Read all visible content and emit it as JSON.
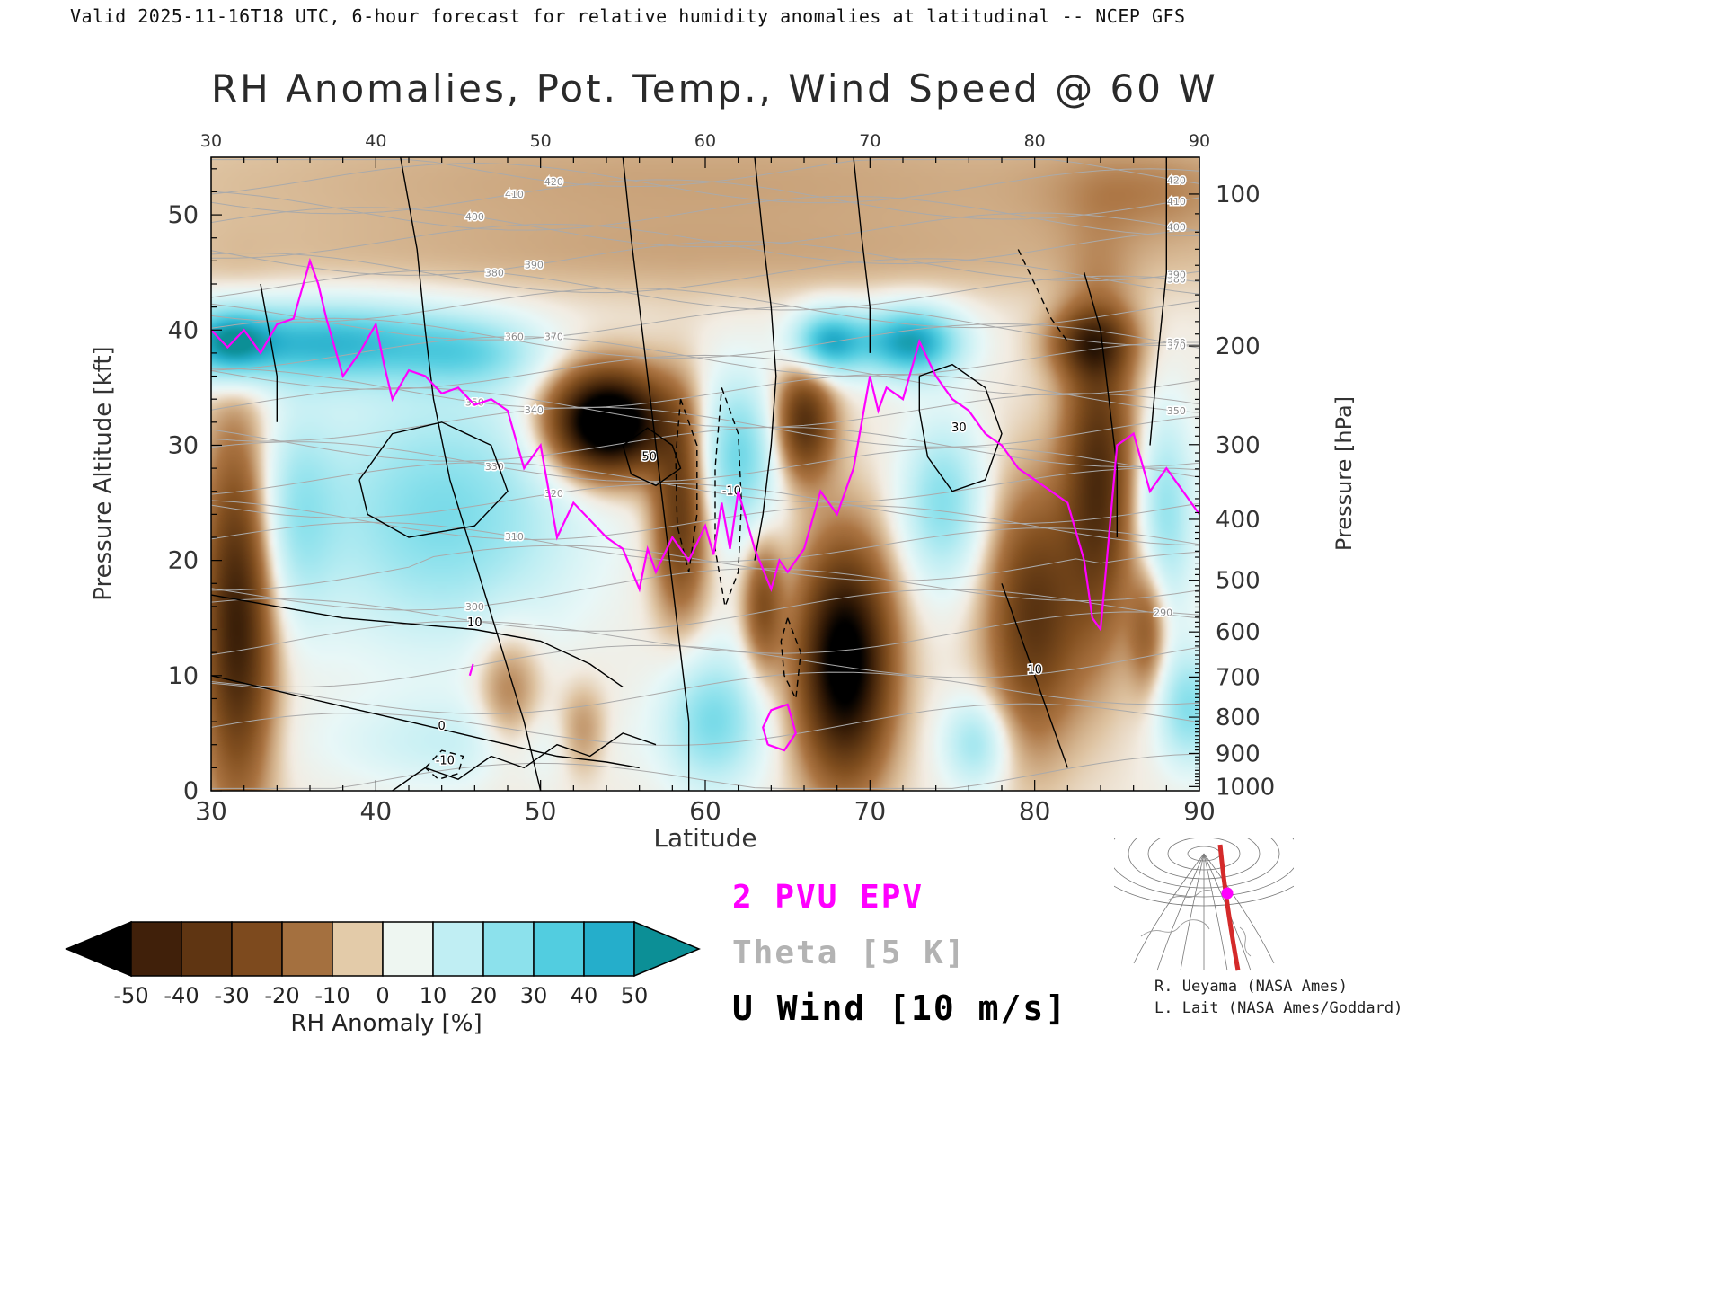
{
  "header": {
    "valid_line": "Valid 2025-11-16T18 UTC, 6-hour forecast for relative humidity anomalies at latitudinal -- NCEP GFS"
  },
  "title": "RH Anomalies, Pot. Temp., Wind Speed @ 60 W",
  "axes": {
    "x_label": "Latitude",
    "x_ticks": [
      30,
      40,
      50,
      60,
      70,
      80,
      90
    ],
    "x_minor_step": 2,
    "left_label": "Pressure Altitude [kft]",
    "left_ticks": [
      0,
      10,
      20,
      30,
      40,
      50
    ],
    "left_minor_step": 2,
    "right_label": "Pressure [hPa]",
    "right_ticks": [
      100,
      200,
      300,
      400,
      500,
      600,
      700,
      800,
      900,
      1000
    ]
  },
  "legend": {
    "pvu": "2 PVU EPV",
    "theta": "Theta [5 K]",
    "uwind": "U Wind [10 m/s]",
    "pvu_color": "#ff00ff",
    "theta_color": "#b3b3b3",
    "uwind_color": "#000000"
  },
  "colorbar": {
    "label": "RH Anomaly [%]",
    "ticks": [
      -50,
      -40,
      -30,
      -20,
      -10,
      0,
      10,
      20,
      30,
      40,
      50
    ],
    "bin_colors": [
      "#40200a",
      "#5f3512",
      "#7d4a1e",
      "#a4703f",
      "#e3cba9",
      "#eef6f1",
      "#c0eef3",
      "#8ce1ec",
      "#52cde0",
      "#25aecb"
    ],
    "left_arrow_color": "#000000",
    "right_arrow_color": "#0c8f96"
  },
  "credits": {
    "line1": "R. Ueyama (NASA Ames)",
    "line2": "L. Lait (NASA Ames/Goddard)"
  },
  "chart_data": {
    "type": "heatmap",
    "title": "RH Anomalies, Pot. Temp., Wind Speed @ 60 W",
    "x_name": "latitude_deg",
    "x_range": [
      30,
      90
    ],
    "y_name": "pressure_altitude_kft",
    "y_range": [
      0,
      55
    ],
    "y2_name": "pressure_hPa",
    "y2_range": [
      1000,
      100
    ],
    "fill_variable": "rh_anomaly_percent",
    "fill_levels": [
      -50,
      -40,
      -30,
      -20,
      -10,
      0,
      10,
      20,
      30,
      40,
      50
    ],
    "rh_anomaly_field": {
      "representation": "gaussian_blobs",
      "blob_format": [
        "lat_deg",
        "alt_kft",
        "radius_lat",
        "radius_kft",
        "amplitude_percent"
      ],
      "blobs": [
        [
          60,
          53,
          40,
          7,
          -9
        ],
        [
          60,
          46,
          40,
          3.5,
          -5
        ],
        [
          87,
          52,
          6,
          4,
          -8
        ],
        [
          31.5,
          15,
          2.2,
          16,
          -45
        ],
        [
          31,
          39,
          2.5,
          3,
          40
        ],
        [
          37,
          39,
          8,
          3.5,
          40
        ],
        [
          46,
          38,
          4,
          3,
          18
        ],
        [
          44,
          24,
          8,
          11,
          28
        ],
        [
          35,
          24,
          2.5,
          9,
          18
        ],
        [
          54,
          32,
          3.5,
          4.5,
          -75
        ],
        [
          48,
          8,
          2,
          6,
          -18
        ],
        [
          58.5,
          24,
          1.7,
          9,
          -35
        ],
        [
          60.5,
          6,
          3,
          6,
          28
        ],
        [
          62,
          29,
          2.5,
          7,
          30
        ],
        [
          66,
          32,
          1.8,
          5,
          -38
        ],
        [
          68.5,
          11,
          2.8,
          10,
          -62
        ],
        [
          67.5,
          39,
          2.2,
          2.8,
          45
        ],
        [
          72.5,
          39,
          3,
          3,
          50
        ],
        [
          74.5,
          25,
          2.5,
          7,
          26
        ],
        [
          76.5,
          4,
          2,
          4,
          22
        ],
        [
          80,
          15,
          2.8,
          11,
          -35
        ],
        [
          84,
          27,
          2.2,
          14,
          -38
        ],
        [
          83.5,
          39,
          2.5,
          3,
          -30
        ],
        [
          88,
          24,
          1.8,
          9,
          24
        ],
        [
          89.5,
          7,
          2,
          5,
          26
        ],
        [
          87,
          14,
          1.2,
          6,
          -22
        ],
        [
          45,
          4,
          8,
          4,
          12
        ],
        [
          63.5,
          16,
          1.2,
          6,
          -25
        ],
        [
          52.5,
          5,
          1.5,
          4,
          -15
        ]
      ]
    },
    "theta_contours": {
      "interval_K": 5,
      "min_K": 270,
      "max_K": 420,
      "labeled_values": [
        300,
        310,
        320,
        330,
        340,
        350,
        360,
        370,
        380,
        390,
        400,
        410,
        420
      ]
    },
    "u_wind_contours": {
      "interval_ms": 10,
      "lines": [
        {
          "pts": [
            [
              41.5,
              55
            ],
            [
              42.5,
              47
            ],
            [
              43,
              40
            ],
            [
              43.5,
              34
            ],
            [
              44.5,
              27
            ],
            [
              46,
              20
            ],
            [
              47.5,
              13
            ],
            [
              49,
              6
            ],
            [
              50,
              0
            ]
          ],
          "dash": false
        },
        {
          "pts": [
            [
              39,
              27
            ],
            [
              41,
              31
            ],
            [
              44,
              32
            ],
            [
              47,
              30
            ],
            [
              48,
              26
            ],
            [
              46,
              23
            ],
            [
              42,
              22
            ],
            [
              39.5,
              24
            ],
            [
              39,
              27
            ]
          ],
          "dash": false
        },
        {
          "pts": [
            [
              55,
              30
            ],
            [
              56.5,
              31.5
            ],
            [
              58,
              30
            ],
            [
              58.5,
              28
            ],
            [
              57,
              26.5
            ],
            [
              55.5,
              27.5
            ],
            [
              55,
              30
            ]
          ],
          "dash": false,
          "label": "50",
          "label_at": [
            56.6,
            29
          ]
        },
        {
          "pts": [
            [
              55,
              55
            ],
            [
              55.5,
              48
            ],
            [
              56,
              42
            ],
            [
              56.5,
              36
            ],
            [
              57,
              30
            ],
            [
              57.5,
              24
            ],
            [
              58,
              18
            ],
            [
              58.5,
              12
            ],
            [
              59,
              6
            ],
            [
              59,
              0
            ]
          ],
          "dash": false
        },
        {
          "pts": [
            [
              58.5,
              34
            ],
            [
              59.5,
              30
            ],
            [
              59.5,
              24
            ],
            [
              59,
              19
            ],
            [
              58.3,
              23
            ],
            [
              58.2,
              29
            ],
            [
              58.5,
              34
            ]
          ],
          "dash": true
        },
        {
          "pts": [
            [
              61,
              35
            ],
            [
              62,
              31
            ],
            [
              62.2,
              25
            ],
            [
              62,
              19
            ],
            [
              61.2,
              16
            ],
            [
              60.6,
              21
            ],
            [
              60.6,
              28
            ],
            [
              61,
              35
            ]
          ],
          "dash": true,
          "label": "-10",
          "label_at": [
            61.6,
            26
          ]
        },
        {
          "pts": [
            [
              65,
              15
            ],
            [
              65.8,
              12
            ],
            [
              65.5,
              8
            ],
            [
              64.8,
              10
            ],
            [
              64.6,
              13
            ],
            [
              65,
              15
            ]
          ],
          "dash": true
        },
        {
          "pts": [
            [
              88,
              55
            ],
            [
              88,
              45
            ],
            [
              87.5,
              38
            ],
            [
              87,
              30
            ]
          ],
          "dash": false
        },
        {
          "pts": [
            [
              73,
              36
            ],
            [
              75,
              37
            ],
            [
              77,
              35
            ],
            [
              78,
              31
            ],
            [
              77,
              27
            ],
            [
              75,
              26
            ],
            [
              73.5,
              29
            ],
            [
              73,
              33
            ],
            [
              73,
              36
            ]
          ],
          "dash": false,
          "label": "30",
          "label_at": [
            75.4,
            31.5
          ]
        },
        {
          "pts": [
            [
              69,
              55
            ],
            [
              69.5,
              48
            ],
            [
              70,
              42
            ],
            [
              70,
              38
            ]
          ],
          "dash": false
        },
        {
          "pts": [
            [
              63,
              55
            ],
            [
              63.5,
              48
            ],
            [
              64,
              42
            ],
            [
              64.3,
              36
            ],
            [
              64,
              30
            ],
            [
              63.5,
              24
            ],
            [
              63,
              20
            ]
          ],
          "dash": false
        },
        {
          "pts": [
            [
              30,
              10
            ],
            [
              33,
              9
            ],
            [
              36,
              8
            ],
            [
              39,
              7
            ],
            [
              42,
              6
            ],
            [
              45,
              5
            ],
            [
              48,
              4
            ],
            [
              51,
              3
            ],
            [
              54,
              2.5
            ],
            [
              56,
              2
            ]
          ],
          "dash": false,
          "label": "0",
          "label_at": [
            44,
            5.6
          ]
        },
        {
          "pts": [
            [
              30,
              17
            ],
            [
              34,
              16
            ],
            [
              38,
              15
            ],
            [
              42,
              14.5
            ],
            [
              46,
              14
            ],
            [
              50,
              13
            ],
            [
              53,
              11
            ],
            [
              55,
              9
            ]
          ],
          "dash": false,
          "label": "10",
          "label_at": [
            46,
            14.6
          ]
        },
        {
          "pts": [
            [
              41,
              0
            ],
            [
              43,
              2
            ],
            [
              45,
              1
            ],
            [
              47,
              3
            ],
            [
              49,
              2
            ],
            [
              51,
              4
            ],
            [
              53,
              3
            ],
            [
              55,
              5
            ],
            [
              57,
              4
            ]
          ],
          "dash": false
        },
        {
          "pts": [
            [
              78,
              18
            ],
            [
              79,
              14
            ],
            [
              80,
              10
            ],
            [
              81,
              6
            ],
            [
              82,
              2
            ]
          ],
          "dash": false,
          "label": "10",
          "label_at": [
            80,
            10.5
          ]
        },
        {
          "pts": [
            [
              83,
              45
            ],
            [
              84,
              40
            ],
            [
              84.5,
              34
            ],
            [
              85,
              28
            ],
            [
              85,
              22
            ]
          ],
          "dash": false
        },
        {
          "pts": [
            [
              79,
              47
            ],
            [
              80,
              44
            ],
            [
              81,
              41
            ],
            [
              82,
              39
            ]
          ],
          "dash": true
        },
        {
          "pts": [
            [
              33,
              44
            ],
            [
              33.5,
              40
            ],
            [
              34,
              36
            ],
            [
              34,
              32
            ]
          ],
          "dash": false
        },
        {
          "pts": [
            [
              43,
              2
            ],
            [
              44,
              3.5
            ],
            [
              45.3,
              3
            ],
            [
              45,
              1.5
            ],
            [
              43.8,
              1
            ],
            [
              43,
              2
            ]
          ],
          "dash": true,
          "label": "-10",
          "label_at": [
            44.2,
            2.6
          ]
        }
      ]
    },
    "pvu2_line": [
      [
        30,
        40
      ],
      [
        31,
        38.5
      ],
      [
        32,
        40
      ],
      [
        33,
        38
      ],
      [
        34,
        40.5
      ],
      [
        35,
        41
      ],
      [
        36,
        46
      ],
      [
        36.5,
        44
      ],
      [
        37,
        41
      ],
      [
        38,
        36
      ],
      [
        39,
        38
      ],
      [
        40,
        40.5
      ],
      [
        40.5,
        37
      ],
      [
        41,
        34
      ],
      [
        42,
        36.5
      ],
      [
        43,
        36
      ],
      [
        44,
        34.5
      ],
      [
        45,
        35
      ],
      [
        46,
        33.5
      ],
      [
        47,
        34
      ],
      [
        48,
        33
      ],
      [
        49,
        28
      ],
      [
        50,
        30
      ],
      [
        50.5,
        26
      ],
      [
        51,
        22
      ],
      [
        52,
        25
      ],
      [
        53,
        23.5
      ],
      [
        54,
        22
      ],
      [
        55,
        21
      ],
      [
        56,
        17.5
      ],
      [
        56.5,
        21
      ],
      [
        57,
        19
      ],
      [
        58,
        22
      ],
      [
        59,
        20
      ],
      [
        60,
        23
      ],
      [
        60.5,
        20.5
      ],
      [
        61,
        25
      ],
      [
        61.5,
        21
      ],
      [
        62,
        26
      ],
      [
        63,
        21
      ],
      [
        64,
        17.5
      ],
      [
        64.5,
        20
      ],
      [
        65,
        19
      ],
      [
        66,
        21
      ],
      [
        67,
        26
      ],
      [
        68,
        24
      ],
      [
        69,
        28
      ],
      [
        70,
        36
      ],
      [
        70.5,
        33
      ],
      [
        71,
        35
      ],
      [
        72,
        34
      ],
      [
        73,
        39
      ],
      [
        74,
        36
      ],
      [
        75,
        34
      ],
      [
        76,
        33
      ],
      [
        77,
        31
      ],
      [
        78,
        30
      ],
      [
        79,
        28
      ],
      [
        80,
        27
      ],
      [
        81,
        26
      ],
      [
        82,
        25
      ],
      [
        83,
        20
      ],
      [
        83.5,
        15
      ],
      [
        84,
        14
      ],
      [
        84.5,
        22
      ],
      [
        85,
        30
      ],
      [
        86,
        31
      ],
      [
        87,
        26
      ],
      [
        88,
        28
      ],
      [
        89,
        26
      ],
      [
        90,
        24
      ]
    ],
    "pvu2_closed_loop": [
      [
        63.8,
        4
      ],
      [
        64.8,
        3.5
      ],
      [
        65.5,
        5
      ],
      [
        65,
        7.5
      ],
      [
        64,
        7
      ],
      [
        63.5,
        5.5
      ],
      [
        63.8,
        4
      ]
    ],
    "color_stops": [
      [
        -55,
        "#000000"
      ],
      [
        -45,
        "#331a06"
      ],
      [
        -35,
        "#5c3512"
      ],
      [
        -25,
        "#835020"
      ],
      [
        -15,
        "#ab7442"
      ],
      [
        -5,
        "#dec3a1"
      ],
      [
        0,
        "#f2ece2"
      ],
      [
        5,
        "#e8f7f7"
      ],
      [
        15,
        "#bfeef3"
      ],
      [
        25,
        "#8ce1ec"
      ],
      [
        35,
        "#52cde0"
      ],
      [
        45,
        "#25aecb"
      ],
      [
        55,
        "#0c8f96"
      ]
    ]
  }
}
